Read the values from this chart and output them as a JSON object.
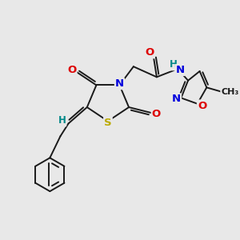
{
  "background_color": "#e8e8e8",
  "bond_color": "#1a1a1a",
  "bond_width": 1.4,
  "atom_colors": {
    "N": "#0000dd",
    "O": "#dd0000",
    "S": "#bbaa00",
    "H": "#008888",
    "C": "#1a1a1a"
  },
  "fs": 8.5
}
